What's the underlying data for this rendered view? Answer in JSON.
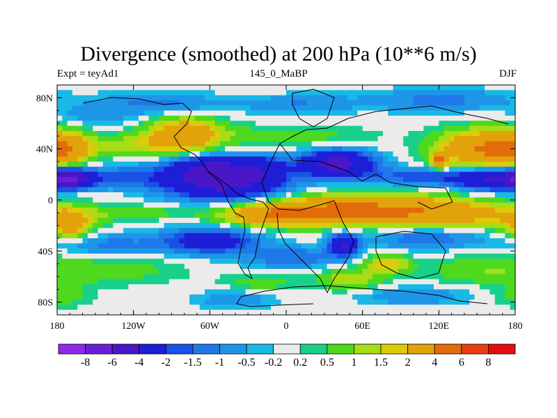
{
  "title": "Divergence (smoothed) at 200 hPa (10**6 m/s)",
  "left_label": "Expt = teyAd1",
  "center_label": "145_0_MaBP",
  "right_label": "DJF",
  "chart_data": {
    "type": "heatmap",
    "title": "Divergence (smoothed) at 200 hPa (10**6 m/s)",
    "xlim": [
      -180,
      180
    ],
    "ylim": [
      -90,
      90
    ],
    "x_ticks": [
      {
        "value": -180,
        "label": "180"
      },
      {
        "value": -120,
        "label": "120W"
      },
      {
        "value": -60,
        "label": "60W"
      },
      {
        "value": 0,
        "label": "0"
      },
      {
        "value": 60,
        "label": "60E"
      },
      {
        "value": 120,
        "label": "120E"
      },
      {
        "value": 180,
        "label": "180"
      }
    ],
    "y_ticks": [
      {
        "value": 80,
        "label": "80N"
      },
      {
        "value": 40,
        "label": "40N"
      },
      {
        "value": 0,
        "label": "0"
      },
      {
        "value": -40,
        "label": "40S"
      },
      {
        "value": -80,
        "label": "80S"
      }
    ],
    "colorbar": {
      "colors": [
        "#8d2be6",
        "#6a1fd6",
        "#4a17c8",
        "#1e1ed6",
        "#1a52e6",
        "#1f78e8",
        "#1e96e8",
        "#19b8e6",
        "#ebebeb",
        "#18d08a",
        "#4ed91e",
        "#a8dc14",
        "#dccb0a",
        "#e2a20a",
        "#e26b0a",
        "#e83e0e",
        "#e60f0f"
      ],
      "labels": [
        "-8",
        "-6",
        "-4",
        "-2",
        "-1.5",
        "-1",
        "-0.5",
        "-0.2",
        "0.2",
        "0.5",
        "1",
        "1.5",
        "2",
        "4",
        "6",
        "8"
      ]
    },
    "features": [
      {
        "lon": -170,
        "lat": 17,
        "value": -4.5,
        "slon": 12,
        "slat": 5
      },
      {
        "lon": -130,
        "lat": 18,
        "value": -1.5,
        "slon": 28,
        "slat": 6
      },
      {
        "lon": -50,
        "lat": 14,
        "value": -5,
        "slon": 32,
        "slat": 9
      },
      {
        "lon": -60,
        "lat": 26,
        "value": -3,
        "slon": 20,
        "slat": 6
      },
      {
        "lon": -20,
        "lat": 26,
        "value": -2,
        "slon": 15,
        "slat": 7
      },
      {
        "lon": 40,
        "lat": 28,
        "value": -5,
        "slon": 20,
        "slat": 7
      },
      {
        "lon": 110,
        "lat": 18,
        "value": -2,
        "slon": 30,
        "slat": 5
      },
      {
        "lon": 165,
        "lat": 16,
        "value": -4,
        "slon": 20,
        "slat": 6
      },
      {
        "lon": -175,
        "lat": 40,
        "value": 2.5,
        "slon": 15,
        "slat": 9
      },
      {
        "lon": -80,
        "lat": 52,
        "value": 3,
        "slon": 20,
        "slat": 9
      },
      {
        "lon": -115,
        "lat": 43,
        "value": 1.2,
        "slon": 30,
        "slat": 6
      },
      {
        "lon": 0,
        "lat": 50,
        "value": 0.8,
        "slon": 45,
        "slat": 6
      },
      {
        "lon": 155,
        "lat": 40,
        "value": 4,
        "slon": 25,
        "slat": 10
      },
      {
        "lon": 120,
        "lat": 30,
        "value": 4,
        "slon": 4,
        "slat": 4
      },
      {
        "lon": 80,
        "lat": -8,
        "value": 4,
        "slon": 45,
        "slat": 8
      },
      {
        "lon": -10,
        "lat": -12,
        "value": 3,
        "slon": 30,
        "slat": 6
      },
      {
        "lon": 20,
        "lat": -8,
        "value": 2,
        "slon": 30,
        "slat": 7
      },
      {
        "lon": 150,
        "lat": -12,
        "value": 1.5,
        "slon": 40,
        "slat": 7
      },
      {
        "lon": -170,
        "lat": -20,
        "value": 2.5,
        "slon": 12,
        "slat": 8
      },
      {
        "lon": -120,
        "lat": -10,
        "value": 0.8,
        "slon": 30,
        "slat": 4
      },
      {
        "lon": -60,
        "lat": -32,
        "value": -3,
        "slon": 25,
        "slat": 7
      },
      {
        "lon": 45,
        "lat": -35,
        "value": -4,
        "slon": 8,
        "slat": 6
      },
      {
        "lon": 5,
        "lat": -45,
        "value": -1.5,
        "slon": 25,
        "slat": 6
      },
      {
        "lon": -140,
        "lat": -35,
        "value": -1.2,
        "slon": 30,
        "slat": 6
      },
      {
        "lon": 110,
        "lat": -30,
        "value": -1.5,
        "slon": 30,
        "slat": 6
      },
      {
        "lon": 80,
        "lat": -50,
        "value": 2,
        "slon": 12,
        "slat": 5
      },
      {
        "lon": 150,
        "lat": -55,
        "value": 0.8,
        "slon": 30,
        "slat": 8
      },
      {
        "lon": -140,
        "lat": -55,
        "value": 0.8,
        "slon": 40,
        "slat": 8
      },
      {
        "lon": 50,
        "lat": -62,
        "value": 1.5,
        "slon": 18,
        "slat": 6
      },
      {
        "lon": -100,
        "lat": 75,
        "value": -1.2,
        "slon": 35,
        "slat": 6
      },
      {
        "lon": 120,
        "lat": 78,
        "value": -1.2,
        "slon": 40,
        "slat": 6
      },
      {
        "lon": 10,
        "lat": 75,
        "value": -1,
        "slon": 30,
        "slat": 5
      },
      {
        "lon": -150,
        "lat": 65,
        "value": -0.8,
        "slon": 20,
        "slat": 5
      },
      {
        "lon": -40,
        "lat": -78,
        "value": -1,
        "slon": 20,
        "slat": 5
      },
      {
        "lon": 100,
        "lat": -75,
        "value": -1,
        "slon": 30,
        "slat": 5
      },
      {
        "lon": -175,
        "lat": -75,
        "value": 0.8,
        "slon": 15,
        "slat": 6
      },
      {
        "lon": -20,
        "lat": -65,
        "value": 0.8,
        "slon": 20,
        "slat": 5
      }
    ]
  }
}
